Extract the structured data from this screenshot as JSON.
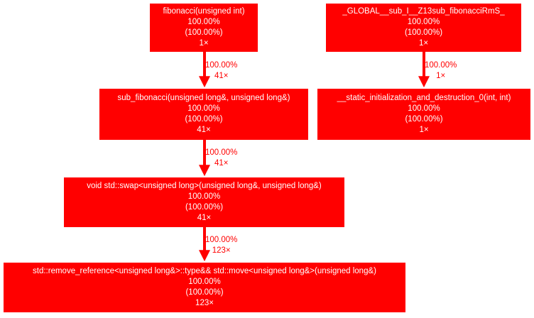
{
  "nodes": [
    {
      "id": "fibonacci",
      "label": "fibonacci(unsigned int)",
      "self": "100.00%",
      "total": "(100.00%)",
      "calls": "1×",
      "color": "#ff0000"
    },
    {
      "id": "global_sub",
      "label": "_GLOBAL__sub_I__Z13sub_fibonacciRmS_",
      "self": "100.00%",
      "total": "(100.00%)",
      "calls": "1×",
      "color": "#ff0000"
    },
    {
      "id": "sub_fibonacci",
      "label": "sub_fibonacci(unsigned long&, unsigned long&)",
      "self": "100.00%",
      "total": "(100.00%)",
      "calls": "41×",
      "color": "#ff0000"
    },
    {
      "id": "static_init",
      "label": "__static_initialization_and_destruction_0(int, int)",
      "self": "100.00%",
      "total": "(100.00%)",
      "calls": "1×",
      "color": "#ff0000"
    },
    {
      "id": "swap",
      "label": "void std::swap<unsigned long>(unsigned long&, unsigned long&)",
      "self": "100.00%",
      "total": "(100.00%)",
      "calls": "41×",
      "color": "#ff0000"
    },
    {
      "id": "move",
      "label": "std::remove_reference<unsigned long&>::type&& std::move<unsigned long&>(unsigned long&)",
      "self": "100.00%",
      "total": "(100.00%)",
      "calls": "123×",
      "color": "#ff0000"
    }
  ],
  "edges": [
    {
      "from": "fibonacci",
      "to": "sub_fibonacci",
      "percent": "100.00%",
      "calls": "41×"
    },
    {
      "from": "global_sub",
      "to": "static_init",
      "percent": "100.00%",
      "calls": "1×"
    },
    {
      "from": "sub_fibonacci",
      "to": "swap",
      "percent": "100.00%",
      "calls": "41×"
    },
    {
      "from": "swap",
      "to": "move",
      "percent": "100.00%",
      "calls": "123×"
    }
  ],
  "edge_color": "#ff0000"
}
